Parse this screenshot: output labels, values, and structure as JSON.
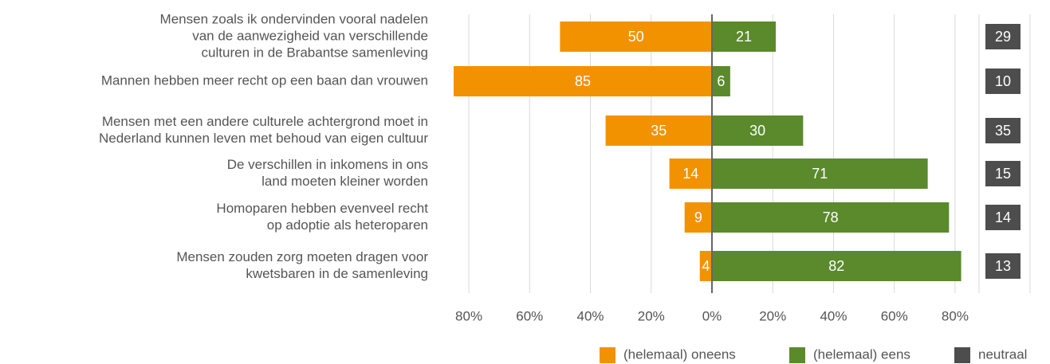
{
  "chart_data": {
    "type": "diverging_bar",
    "categories": [
      [
        "Mensen zoals ik ondervinden vooral nadelen",
        "van de aanwezigheid van verschillende",
        "culturen in de Brabantse samenleving"
      ],
      [
        "Mannen hebben meer recht op een baan dan vrouwen"
      ],
      [
        "Mensen met een andere culturele achtergrond moet in",
        "Nederland kunnen leven met behoud van eigen cultuur"
      ],
      [
        "De verschillen in inkomens in ons",
        "land moeten kleiner worden"
      ],
      [
        "Homoparen hebben evenveel recht",
        "op adoptie als heteroparen"
      ],
      [
        "Mensen zouden zorg moeten dragen voor",
        "kwetsbaren in de samenleving"
      ]
    ],
    "series": [
      {
        "name": "(helemaal) oneens",
        "color": "#f39200",
        "values": [
          -50,
          -85,
          -35,
          -14,
          -9,
          -4
        ],
        "value_labels": [
          "50",
          "85",
          "35",
          "14",
          "9",
          "4"
        ]
      },
      {
        "name": "(helemaal) eens",
        "color": "#5a8a2b",
        "values": [
          21,
          6,
          30,
          71,
          78,
          82
        ]
      },
      {
        "name": "neutraal",
        "color": "#4d4d4d",
        "values": [
          29,
          10,
          35,
          15,
          14,
          13
        ]
      }
    ],
    "xlim": [
      -85,
      85
    ],
    "xticks": [
      {
        "value": -80,
        "label": "80%"
      },
      {
        "value": -60,
        "label": "60%"
      },
      {
        "value": -40,
        "label": "40%"
      },
      {
        "value": -20,
        "label": "20%"
      },
      {
        "value": 0,
        "label": "0%"
      },
      {
        "value": 20,
        "label": "20%"
      },
      {
        "value": 40,
        "label": "40%"
      },
      {
        "value": 60,
        "label": "60%"
      },
      {
        "value": 80,
        "label": "80%"
      }
    ],
    "grid": true
  }
}
